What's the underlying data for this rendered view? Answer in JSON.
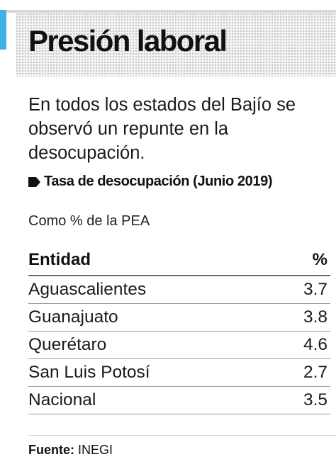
{
  "header": {
    "title": "Presión laboral",
    "accent_color": "#3bb3e4"
  },
  "subtitle": "En todos los estados del Bajío se observó un repunte en la desocupación.",
  "table_title": "Tasa de desocupación (Junio 2019)",
  "unit_note": "Como % de la PEA",
  "columns": {
    "entity": "Entidad",
    "value": "%"
  },
  "rows": [
    {
      "entity": "Aguascalientes",
      "value": "3.7"
    },
    {
      "entity": "Guanajuato",
      "value": "3.8"
    },
    {
      "entity": "Querétaro",
      "value": "4.6"
    },
    {
      "entity": "San Luis Potosí",
      "value": "2.7"
    },
    {
      "entity": "Nacional",
      "value": "3.5"
    }
  ],
  "source": {
    "label": "Fuente:",
    "value": "INEGI"
  },
  "chart_data": {
    "type": "table",
    "title": "Tasa de desocupación (Junio 2019)",
    "subtitle": "Como % de la PEA",
    "columns": [
      "Entidad",
      "%"
    ],
    "categories": [
      "Aguascalientes",
      "Guanajuato",
      "Querétaro",
      "San Luis Potosí",
      "Nacional"
    ],
    "values": [
      3.7,
      3.8,
      4.6,
      2.7,
      3.5
    ]
  }
}
